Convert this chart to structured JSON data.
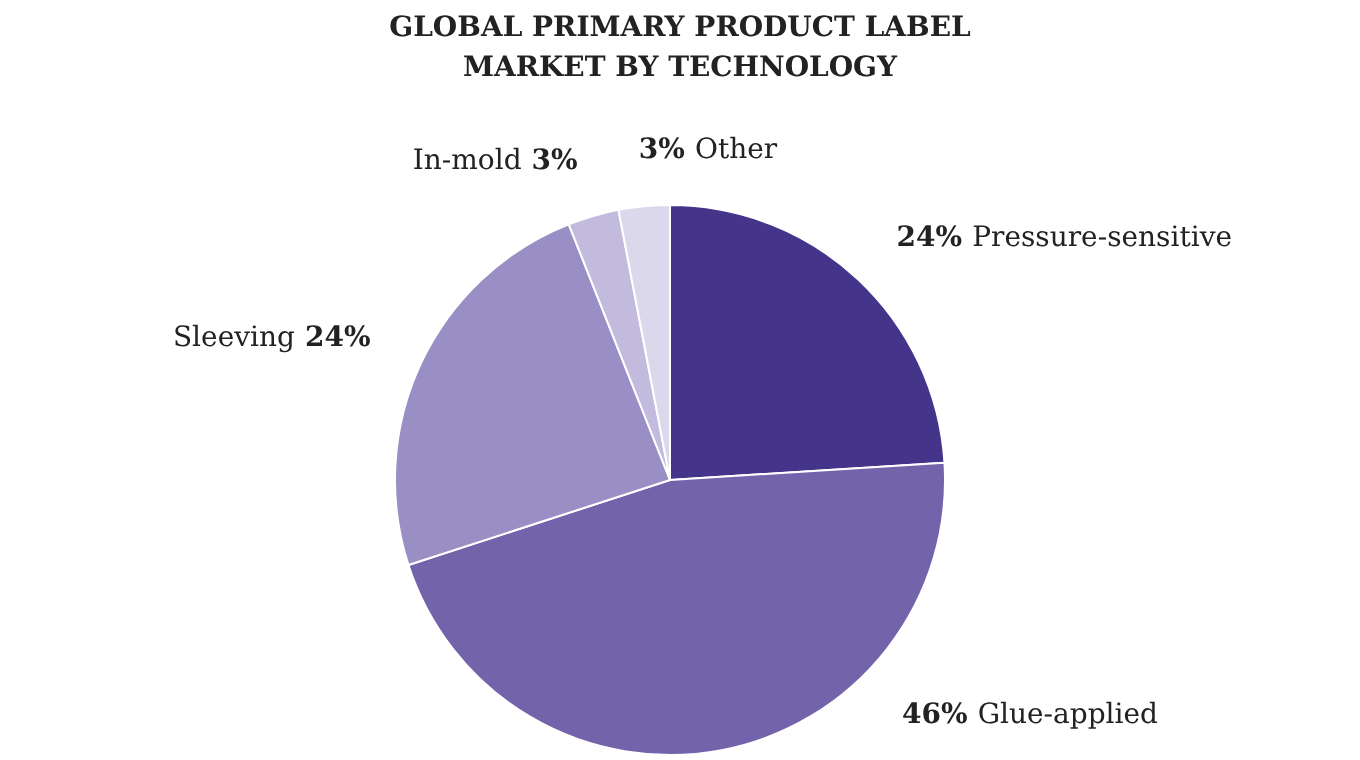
{
  "chart_data": {
    "type": "pie",
    "title": "GLOBAL PRIMARY PRODUCT LABEL\nMARKET BY TECHNOLOGY",
    "categories": [
      "Pressure-sensitive",
      "Glue-applied",
      "Sleeving",
      "In-mold",
      "Other"
    ],
    "values": [
      24,
      46,
      24,
      3,
      3
    ],
    "value_labels": [
      "24%",
      "46%",
      "24%",
      "3%",
      "3%"
    ],
    "colors": [
      "#45358a",
      "#7263ab",
      "#9a8fc5",
      "#c3bbdd",
      "#dcd8ec"
    ],
    "legend": false
  }
}
